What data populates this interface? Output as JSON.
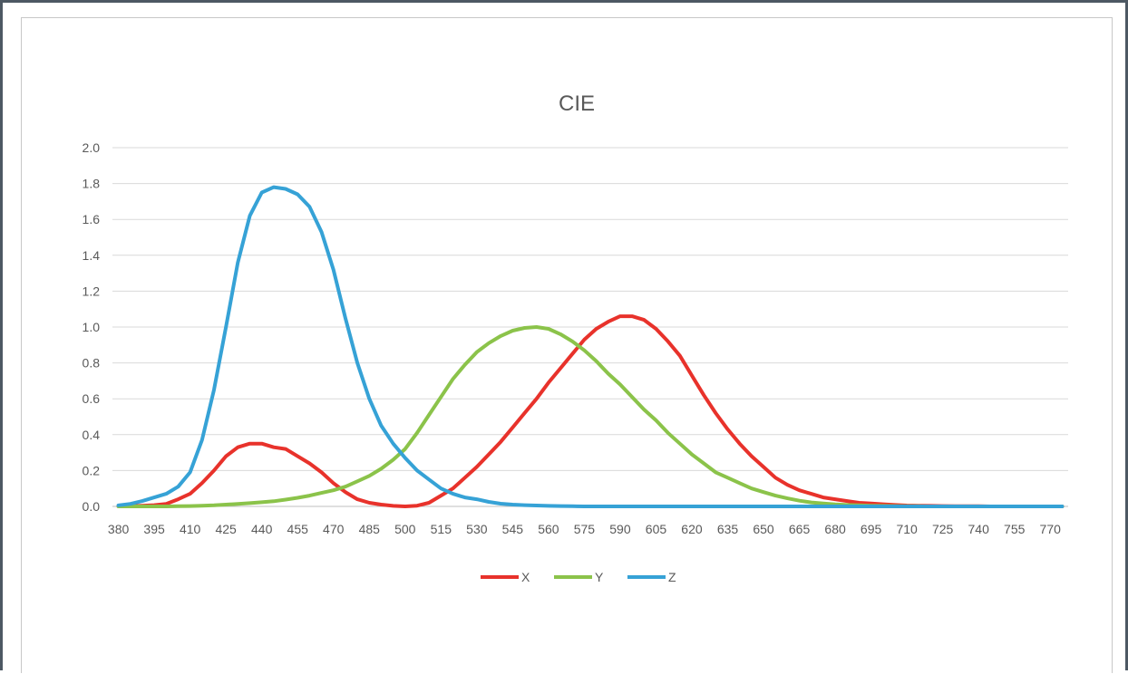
{
  "chart_data": {
    "type": "line",
    "title": "CIE",
    "xlabel": "",
    "ylabel": "",
    "ylim": [
      0,
      2.0
    ],
    "yticks": [
      "0.0",
      "0.2",
      "0.4",
      "0.6",
      "0.8",
      "1.0",
      "1.2",
      "1.4",
      "1.6",
      "1.8",
      "2.0"
    ],
    "x_tick_labels": [
      "380",
      "395",
      "410",
      "425",
      "440",
      "455",
      "470",
      "485",
      "500",
      "515",
      "530",
      "545",
      "560",
      "575",
      "590",
      "605",
      "620",
      "635",
      "650",
      "665",
      "680",
      "695",
      "710",
      "725",
      "740",
      "755",
      "770"
    ],
    "x": [
      380,
      385,
      390,
      395,
      400,
      405,
      410,
      415,
      420,
      425,
      430,
      435,
      440,
      445,
      450,
      455,
      460,
      465,
      470,
      475,
      480,
      485,
      490,
      495,
      500,
      505,
      510,
      515,
      520,
      525,
      530,
      535,
      540,
      545,
      550,
      555,
      560,
      565,
      570,
      575,
      580,
      585,
      590,
      595,
      600,
      605,
      610,
      615,
      620,
      625,
      630,
      635,
      640,
      645,
      650,
      655,
      660,
      665,
      670,
      675,
      680,
      685,
      690,
      695,
      700,
      705,
      710,
      715,
      720,
      725,
      730,
      735,
      740,
      745,
      750,
      755,
      760,
      765,
      770,
      775
    ],
    "grid": true,
    "legend_position": "bottom",
    "series": [
      {
        "name": "X",
        "color": "#e8322b",
        "values": [
          0.001,
          0.002,
          0.004,
          0.007,
          0.014,
          0.04,
          0.07,
          0.13,
          0.2,
          0.28,
          0.33,
          0.35,
          0.35,
          0.33,
          0.32,
          0.28,
          0.24,
          0.19,
          0.13,
          0.08,
          0.04,
          0.02,
          0.01,
          0.003,
          0.0,
          0.004,
          0.02,
          0.06,
          0.1,
          0.16,
          0.22,
          0.29,
          0.36,
          0.44,
          0.52,
          0.6,
          0.69,
          0.77,
          0.85,
          0.93,
          0.99,
          1.03,
          1.06,
          1.06,
          1.04,
          0.99,
          0.92,
          0.84,
          0.73,
          0.62,
          0.52,
          0.43,
          0.35,
          0.28,
          0.22,
          0.16,
          0.12,
          0.09,
          0.07,
          0.05,
          0.04,
          0.03,
          0.02,
          0.016,
          0.012,
          0.008,
          0.005,
          0.004,
          0.003,
          0.002,
          0.001,
          0.001,
          0.001,
          0.0,
          0.0,
          0.0,
          0.0,
          0.0,
          0.0,
          0.0
        ]
      },
      {
        "name": "Y",
        "color": "#8bc34a",
        "values": [
          0.0,
          0.0,
          0.0,
          0.0,
          0.0,
          0.001,
          0.002,
          0.004,
          0.006,
          0.01,
          0.014,
          0.018,
          0.023,
          0.029,
          0.038,
          0.048,
          0.06,
          0.075,
          0.09,
          0.11,
          0.14,
          0.17,
          0.21,
          0.26,
          0.32,
          0.41,
          0.51,
          0.61,
          0.71,
          0.79,
          0.86,
          0.91,
          0.95,
          0.98,
          0.995,
          1.0,
          0.99,
          0.96,
          0.92,
          0.87,
          0.81,
          0.74,
          0.68,
          0.61,
          0.54,
          0.48,
          0.41,
          0.35,
          0.29,
          0.24,
          0.19,
          0.16,
          0.13,
          0.1,
          0.08,
          0.06,
          0.045,
          0.032,
          0.022,
          0.016,
          0.011,
          0.008,
          0.006,
          0.004,
          0.003,
          0.002,
          0.001,
          0.001,
          0.0,
          0.0,
          0.0,
          0.0,
          0.0,
          0.0,
          0.0,
          0.0,
          0.0,
          0.0,
          0.0,
          0.0
        ]
      },
      {
        "name": "Z",
        "color": "#36a2d6",
        "values": [
          0.006,
          0.014,
          0.03,
          0.05,
          0.07,
          0.11,
          0.19,
          0.37,
          0.65,
          1.0,
          1.36,
          1.62,
          1.75,
          1.78,
          1.77,
          1.74,
          1.67,
          1.53,
          1.32,
          1.05,
          0.8,
          0.6,
          0.45,
          0.35,
          0.27,
          0.2,
          0.15,
          0.1,
          0.07,
          0.05,
          0.04,
          0.025,
          0.015,
          0.01,
          0.007,
          0.005,
          0.003,
          0.002,
          0.001,
          0.0,
          0.0,
          0.0,
          0.0,
          0.0,
          0.0,
          0.0,
          0.0,
          0.0,
          0.0,
          0.0,
          0.0,
          0.0,
          0.0,
          0.0,
          0.0,
          0.0,
          0.0,
          0.0,
          0.0,
          0.0,
          0.0,
          0.0,
          0.0,
          0.0,
          0.0,
          0.0,
          0.0,
          0.0,
          0.0,
          0.0,
          0.0,
          0.0,
          0.0,
          0.0,
          0.0,
          0.0,
          0.0,
          0.0,
          0.0,
          0.0
        ]
      }
    ]
  }
}
